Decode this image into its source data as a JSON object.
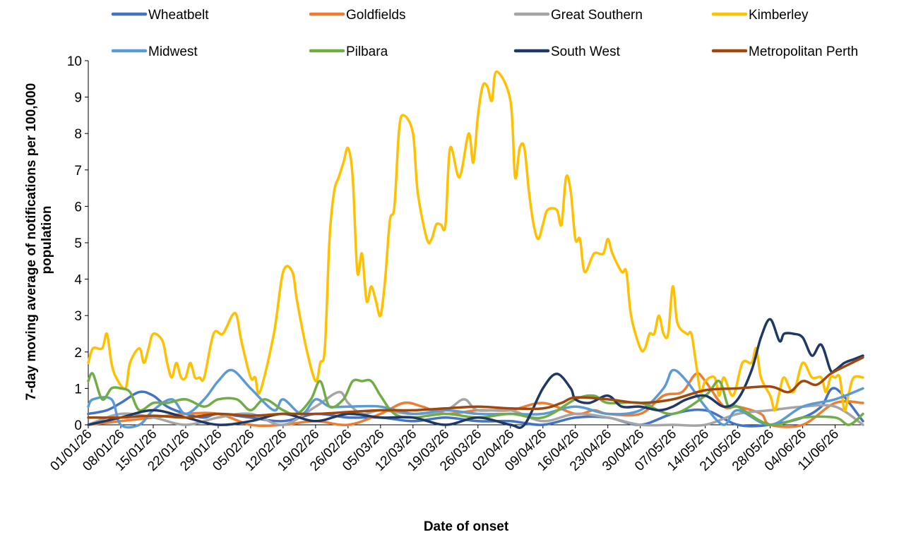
{
  "chart_data": {
    "type": "line",
    "xlabel": "Date of onset",
    "ylabel": "7-day moving average of notifications  per 100,000 population",
    "ylim": [
      0,
      10
    ],
    "yticks": [
      "0",
      "1",
      "2",
      "3",
      "4",
      "5",
      "6",
      "7",
      "8",
      "9",
      "10"
    ],
    "x_unit": "date",
    "x_start": "01/01/26",
    "x_end": "17/06/26",
    "xticks": [
      "01/01/26",
      "08/01/26",
      "15/01/26",
      "22/01/26",
      "29/01/26",
      "05/02/26",
      "12/02/26",
      "19/02/26",
      "26/02/26",
      "05/03/26",
      "12/03/26",
      "19/03/26",
      "26/03/26",
      "02/04/26",
      "09/04/26",
      "16/04/26",
      "23/04/26",
      "30/04/26",
      "07/05/26",
      "14/05/26",
      "21/05/26",
      "28/05/26",
      "04/06/26",
      "11/06/26"
    ],
    "grid": false,
    "legend_position": "top",
    "series": [
      {
        "name": "Wheatbelt",
        "color": "#4472C4",
        "x": [
          "01/01/26",
          "05/01/26",
          "08/01/26",
          "12/01/26",
          "15/01/26",
          "18/01/26",
          "22/01/26",
          "26/01/26",
          "29/01/26",
          "05/02/26",
          "12/02/26",
          "19/02/26",
          "26/02/26",
          "05/03/26",
          "12/03/26",
          "19/03/26",
          "26/03/26",
          "02/04/26",
          "09/04/26",
          "16/04/26",
          "23/04/26",
          "30/04/26",
          "07/05/26",
          "14/05/26",
          "21/05/26",
          "28/05/26",
          "04/06/26",
          "08/06/26",
          "11/06/26",
          "17/06/26"
        ],
        "values": [
          0.3,
          0.4,
          0.6,
          0.9,
          0.8,
          0.5,
          0.3,
          0.2,
          0.3,
          0.2,
          0.1,
          0.3,
          0.2,
          0.2,
          0.1,
          0.2,
          0.1,
          0.1,
          0.0,
          0.2,
          0.2,
          0.0,
          0.3,
          0.4,
          0.0,
          0.0,
          0.2,
          0.5,
          1.0,
          0.1
        ]
      },
      {
        "name": "Goldfields",
        "color": "#ED7D31",
        "x": [
          "01/01/26",
          "08/01/26",
          "15/01/26",
          "22/01/26",
          "29/01/26",
          "05/02/26",
          "12/02/26",
          "19/02/26",
          "26/02/26",
          "05/03/26",
          "10/03/26",
          "14/03/26",
          "19/03/26",
          "26/03/26",
          "02/04/26",
          "09/04/26",
          "16/04/26",
          "20/04/26",
          "23/04/26",
          "30/04/26",
          "05/05/26",
          "09/05/26",
          "12/05/26",
          "14/05/26",
          "18/05/26",
          "21/05/26",
          "26/05/26",
          "28/05/26",
          "04/06/26",
          "11/06/26",
          "17/06/26"
        ],
        "values": [
          0.0,
          0.1,
          0.2,
          0.3,
          0.3,
          0.0,
          0.0,
          0.1,
          0.0,
          0.3,
          0.6,
          0.5,
          0.3,
          0.4,
          0.4,
          0.6,
          0.3,
          0.4,
          0.3,
          0.3,
          0.8,
          0.9,
          1.4,
          1.2,
          0.5,
          0.5,
          0.3,
          0.0,
          0.0,
          0.6,
          0.6
        ]
      },
      {
        "name": "Great Southern",
        "color": "#A5A5A5",
        "x": [
          "01/01/26",
          "08/01/26",
          "15/01/26",
          "22/01/26",
          "29/01/26",
          "05/02/26",
          "12/02/26",
          "19/02/26",
          "24/02/26",
          "26/02/26",
          "01/03/26",
          "05/03/26",
          "12/03/26",
          "19/03/26",
          "23/03/26",
          "26/03/26",
          "02/04/26",
          "09/04/26",
          "16/04/26",
          "23/04/26",
          "30/04/26",
          "07/05/26",
          "14/05/26",
          "21/05/26",
          "28/05/26",
          "04/06/26",
          "11/06/26",
          "17/06/26"
        ],
        "values": [
          0.0,
          0.3,
          0.2,
          0.0,
          0.2,
          0.3,
          0.0,
          0.5,
          0.9,
          0.6,
          0.3,
          0.4,
          0.3,
          0.4,
          0.7,
          0.4,
          0.4,
          0.1,
          0.3,
          0.2,
          0.0,
          0.0,
          0.0,
          0.3,
          0.4,
          0.5,
          0.5,
          0.0
        ]
      },
      {
        "name": "Kimberley",
        "color": "#FFC000",
        "x": [
          "01/01/26",
          "02/01/26",
          "04/01/26",
          "05/01/26",
          "06/01/26",
          "07/01/26",
          "09/01/26",
          "10/01/26",
          "12/01/26",
          "13/01/26",
          "14/01/26",
          "15/01/26",
          "17/01/26",
          "18/01/26",
          "19/01/26",
          "20/01/26",
          "21/01/26",
          "22/01/26",
          "23/01/26",
          "24/01/26",
          "25/01/26",
          "26/01/26",
          "28/01/26",
          "30/01/26",
          "01/02/26",
          "02/02/26",
          "03/02/26",
          "05/02/26",
          "06/02/26",
          "07/02/26",
          "10/02/26",
          "12/02/26",
          "14/02/26",
          "15/02/26",
          "17/02/26",
          "19/02/26",
          "20/02/26",
          "21/02/26",
          "22/02/26",
          "23/02/26",
          "24/02/26",
          "25/02/26",
          "26/02/26",
          "27/02/26",
          "28/02/26",
          "01/03/26",
          "02/03/26",
          "03/03/26",
          "04/03/26",
          "05/03/26",
          "06/03/26",
          "07/03/26",
          "08/03/26",
          "09/03/26",
          "10/03/26",
          "12/03/26",
          "13/03/26",
          "15/03/26",
          "16/03/26",
          "17/03/26",
          "18/03/26",
          "19/03/26",
          "20/03/26",
          "22/03/26",
          "24/03/26",
          "25/03/26",
          "26/03/26",
          "27/03/26",
          "28/03/26",
          "29/03/26",
          "30/03/26",
          "02/04/26",
          "03/04/26",
          "04/04/26",
          "05/04/26",
          "06/04/26",
          "07/04/26",
          "08/04/26",
          "09/04/26",
          "10/04/26",
          "12/04/26",
          "13/04/26",
          "14/04/26",
          "15/04/26",
          "16/04/26",
          "17/04/26",
          "18/04/26",
          "20/04/26",
          "22/04/26",
          "23/04/26",
          "24/04/26",
          "26/04/26",
          "27/04/26",
          "28/04/26",
          "30/04/26",
          "01/05/26",
          "02/05/26",
          "03/05/26",
          "04/05/26",
          "05/05/26",
          "06/05/26",
          "07/05/26",
          "08/05/26",
          "10/05/26",
          "11/05/26",
          "12/05/26",
          "13/05/26",
          "14/05/26",
          "16/05/26",
          "17/05/26",
          "18/05/26",
          "20/05/26",
          "22/05/26",
          "24/05/26",
          "25/05/26",
          "26/05/26",
          "28/05/26",
          "29/05/26",
          "30/05/26",
          "31/05/26",
          "02/06/26",
          "04/06/26",
          "06/06/26",
          "08/06/26",
          "09/06/26",
          "10/06/26",
          "11/06/26",
          "12/06/26",
          "13/06/26",
          "14/06/26",
          "15/06/26",
          "17/06/26"
        ],
        "values": [
          1.7,
          2.1,
          2.1,
          2.5,
          1.7,
          1.3,
          1.0,
          1.7,
          2.1,
          1.7,
          2.1,
          2.5,
          2.3,
          1.7,
          1.3,
          1.7,
          1.3,
          1.3,
          1.7,
          1.3,
          1.3,
          1.3,
          2.5,
          2.5,
          3.0,
          3.0,
          2.3,
          1.3,
          1.3,
          0.9,
          2.5,
          4.2,
          4.2,
          3.4,
          2.1,
          1.2,
          1.7,
          2.1,
          5.1,
          6.4,
          6.8,
          7.2,
          7.6,
          6.8,
          4.2,
          4.7,
          3.4,
          3.8,
          3.4,
          3.0,
          4.0,
          5.6,
          6.0,
          8.1,
          8.5,
          8.0,
          6.4,
          5.1,
          5.1,
          5.5,
          5.5,
          5.5,
          7.6,
          6.8,
          8.0,
          7.2,
          8.5,
          9.3,
          9.3,
          8.9,
          9.7,
          8.9,
          6.8,
          7.6,
          7.6,
          6.4,
          5.5,
          5.1,
          5.5,
          5.9,
          5.9,
          5.5,
          6.8,
          6.4,
          5.1,
          5.1,
          4.2,
          4.7,
          4.7,
          5.1,
          4.7,
          4.2,
          4.2,
          3.0,
          2.1,
          2.1,
          2.5,
          2.5,
          3.0,
          2.5,
          2.5,
          3.8,
          2.8,
          2.5,
          2.5,
          1.7,
          0.9,
          1.2,
          1.3,
          0.8,
          1.3,
          0.8,
          1.7,
          1.7,
          2.1,
          1.3,
          0.8,
          0.4,
          0.9,
          1.3,
          0.9,
          1.7,
          1.3,
          1.3,
          0.9,
          1.3,
          1.3,
          1.3,
          0.4,
          0.9,
          1.3,
          1.3
        ]
      },
      {
        "name": "Midwest",
        "color": "#5B9BD5",
        "x": [
          "01/01/26",
          "02/01/26",
          "06/01/26",
          "08/01/26",
          "12/01/26",
          "15/01/26",
          "19/01/26",
          "22/01/26",
          "26/01/26",
          "29/01/26",
          "01/02/26",
          "05/02/26",
          "10/02/26",
          "12/02/26",
          "16/02/26",
          "19/02/26",
          "22/02/26",
          "26/02/26",
          "05/03/26",
          "12/03/26",
          "19/03/26",
          "26/03/26",
          "02/04/26",
          "09/04/26",
          "16/04/26",
          "23/04/26",
          "30/04/26",
          "05/05/26",
          "07/05/26",
          "10/05/26",
          "14/05/26",
          "18/05/26",
          "21/05/26",
          "28/05/26",
          "04/06/26",
          "11/06/26",
          "17/06/26"
        ],
        "values": [
          0.5,
          0.7,
          0.7,
          0.0,
          0.0,
          0.4,
          0.7,
          0.3,
          0.7,
          1.2,
          1.5,
          1.0,
          0.4,
          0.7,
          0.3,
          0.7,
          0.5,
          0.5,
          0.5,
          0.3,
          0.4,
          0.3,
          0.3,
          0.3,
          0.5,
          0.3,
          0.4,
          1.0,
          1.5,
          1.2,
          0.5,
          0.0,
          0.4,
          0.0,
          0.5,
          0.7,
          1.0
        ]
      },
      {
        "name": "Pilbara",
        "color": "#70AD47",
        "x": [
          "01/01/26",
          "02/01/26",
          "04/01/26",
          "06/01/26",
          "08/01/26",
          "10/01/26",
          "12/01/26",
          "15/01/26",
          "18/01/26",
          "22/01/26",
          "26/01/26",
          "29/01/26",
          "02/02/26",
          "05/02/26",
          "08/02/26",
          "12/02/26",
          "15/02/26",
          "18/02/26",
          "20/02/26",
          "22/02/26",
          "25/02/26",
          "27/02/26",
          "01/03/26",
          "03/03/26",
          "05/03/26",
          "08/03/26",
          "12/03/26",
          "19/03/26",
          "26/03/26",
          "02/04/26",
          "09/04/26",
          "16/04/26",
          "20/04/26",
          "23/04/26",
          "30/04/26",
          "07/05/26",
          "14/05/26",
          "17/05/26",
          "19/05/26",
          "21/05/26",
          "28/05/26",
          "04/06/26",
          "11/06/26",
          "14/06/26",
          "17/06/26"
        ],
        "values": [
          1.2,
          1.4,
          0.7,
          1.0,
          1.0,
          0.9,
          0.4,
          0.6,
          0.6,
          0.7,
          0.5,
          0.7,
          0.7,
          0.4,
          0.7,
          0.4,
          0.3,
          0.7,
          1.2,
          0.5,
          0.7,
          1.2,
          1.2,
          1.2,
          0.8,
          0.3,
          0.2,
          0.3,
          0.2,
          0.3,
          0.2,
          0.7,
          0.8,
          0.6,
          0.6,
          0.3,
          0.8,
          1.2,
          0.5,
          0.5,
          0.0,
          0.2,
          0.2,
          0.0,
          0.3
        ]
      },
      {
        "name": "South West",
        "color": "#203864",
        "x": [
          "01/01/26",
          "08/01/26",
          "15/01/26",
          "22/01/26",
          "29/01/26",
          "05/02/26",
          "12/02/26",
          "19/02/26",
          "26/02/26",
          "05/03/26",
          "12/03/26",
          "19/03/26",
          "26/03/26",
          "02/04/26",
          "05/04/26",
          "09/04/26",
          "12/04/26",
          "15/04/26",
          "16/04/26",
          "19/04/26",
          "23/04/26",
          "26/04/26",
          "30/04/26",
          "04/05/26",
          "07/05/26",
          "10/05/26",
          "14/05/26",
          "18/05/26",
          "21/05/26",
          "24/05/26",
          "26/05/26",
          "28/05/26",
          "30/05/26",
          "31/05/26",
          "02/06/26",
          "04/06/26",
          "06/06/26",
          "08/06/26",
          "10/06/26",
          "11/06/26",
          "13/06/26",
          "15/06/26",
          "17/06/26"
        ],
        "values": [
          0.0,
          0.2,
          0.4,
          0.2,
          0.0,
          0.1,
          0.3,
          0.1,
          0.3,
          0.2,
          0.2,
          0.0,
          0.2,
          0.0,
          0.0,
          1.0,
          1.4,
          1.0,
          0.7,
          0.6,
          0.8,
          0.5,
          0.5,
          0.4,
          0.5,
          0.7,
          0.8,
          0.5,
          0.7,
          1.5,
          2.4,
          2.9,
          2.3,
          2.5,
          2.5,
          2.4,
          1.9,
          2.2,
          1.5,
          1.5,
          1.7,
          1.8,
          1.9
        ]
      },
      {
        "name": "Metropolitan Perth",
        "color": "#9E480E",
        "x": [
          "01/01/26",
          "08/01/26",
          "15/01/26",
          "22/01/26",
          "29/01/26",
          "05/02/26",
          "12/02/26",
          "19/02/26",
          "26/02/26",
          "05/03/26",
          "12/03/26",
          "19/03/26",
          "26/03/26",
          "02/04/26",
          "09/04/26",
          "13/04/26",
          "16/04/26",
          "23/04/26",
          "30/04/26",
          "07/05/26",
          "14/05/26",
          "21/05/26",
          "28/05/26",
          "01/06/26",
          "04/06/26",
          "07/06/26",
          "10/06/26",
          "13/06/26",
          "17/06/26"
        ],
        "values": [
          0.2,
          0.2,
          0.25,
          0.2,
          0.3,
          0.25,
          0.3,
          0.3,
          0.35,
          0.4,
          0.4,
          0.45,
          0.5,
          0.45,
          0.45,
          0.6,
          0.75,
          0.7,
          0.6,
          0.7,
          0.95,
          1.0,
          1.05,
          0.9,
          1.2,
          1.1,
          1.4,
          1.6,
          1.85
        ]
      }
    ]
  }
}
